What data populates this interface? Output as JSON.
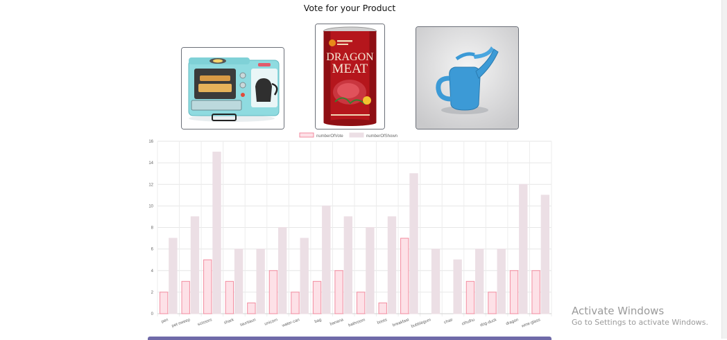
{
  "page": {
    "title": "Vote for your Product"
  },
  "products": [
    {
      "name": "breakfast",
      "icon": "breakfast-oven-image"
    },
    {
      "name": "dragon",
      "icon": "dragon-meat-can-image",
      "label_line1": "DRAGON",
      "label_line2": "MEAT"
    },
    {
      "name": "water-can",
      "icon": "watering-can-image"
    }
  ],
  "chart_data": {
    "type": "bar",
    "categories": [
      "pen",
      "pet-sweep",
      "scissors",
      "shark",
      "tauntaun",
      "unicorn",
      "water-can",
      "bag",
      "banana",
      "bathroom",
      "boots",
      "breakfast",
      "bubblegum",
      "chair",
      "cthulhu",
      "dog-duck",
      "dragon",
      "wine-glass"
    ],
    "series": [
      {
        "name": "numberOfVote",
        "values": [
          2,
          3,
          5,
          3,
          1,
          4,
          2,
          3,
          4,
          2,
          1,
          7,
          0,
          0,
          3,
          2,
          4,
          4
        ],
        "fill": "#fde1e7",
        "stroke": "#f28b9f"
      },
      {
        "name": "numberOfShown",
        "values": [
          7,
          9,
          15,
          6,
          6,
          8,
          7,
          10,
          9,
          8,
          9,
          13,
          6,
          5,
          6,
          6,
          12,
          11
        ],
        "fill": "#ecdfe5",
        "stroke": "#ecdfe5"
      }
    ],
    "ylim": [
      0,
      16
    ],
    "yticks": [
      0,
      2,
      4,
      6,
      8,
      10,
      12,
      14,
      16
    ],
    "legend": "top-center",
    "grid": true
  },
  "os_watermark": {
    "title": "Activate Windows",
    "subtitle": "Go to Settings to activate Windows."
  }
}
